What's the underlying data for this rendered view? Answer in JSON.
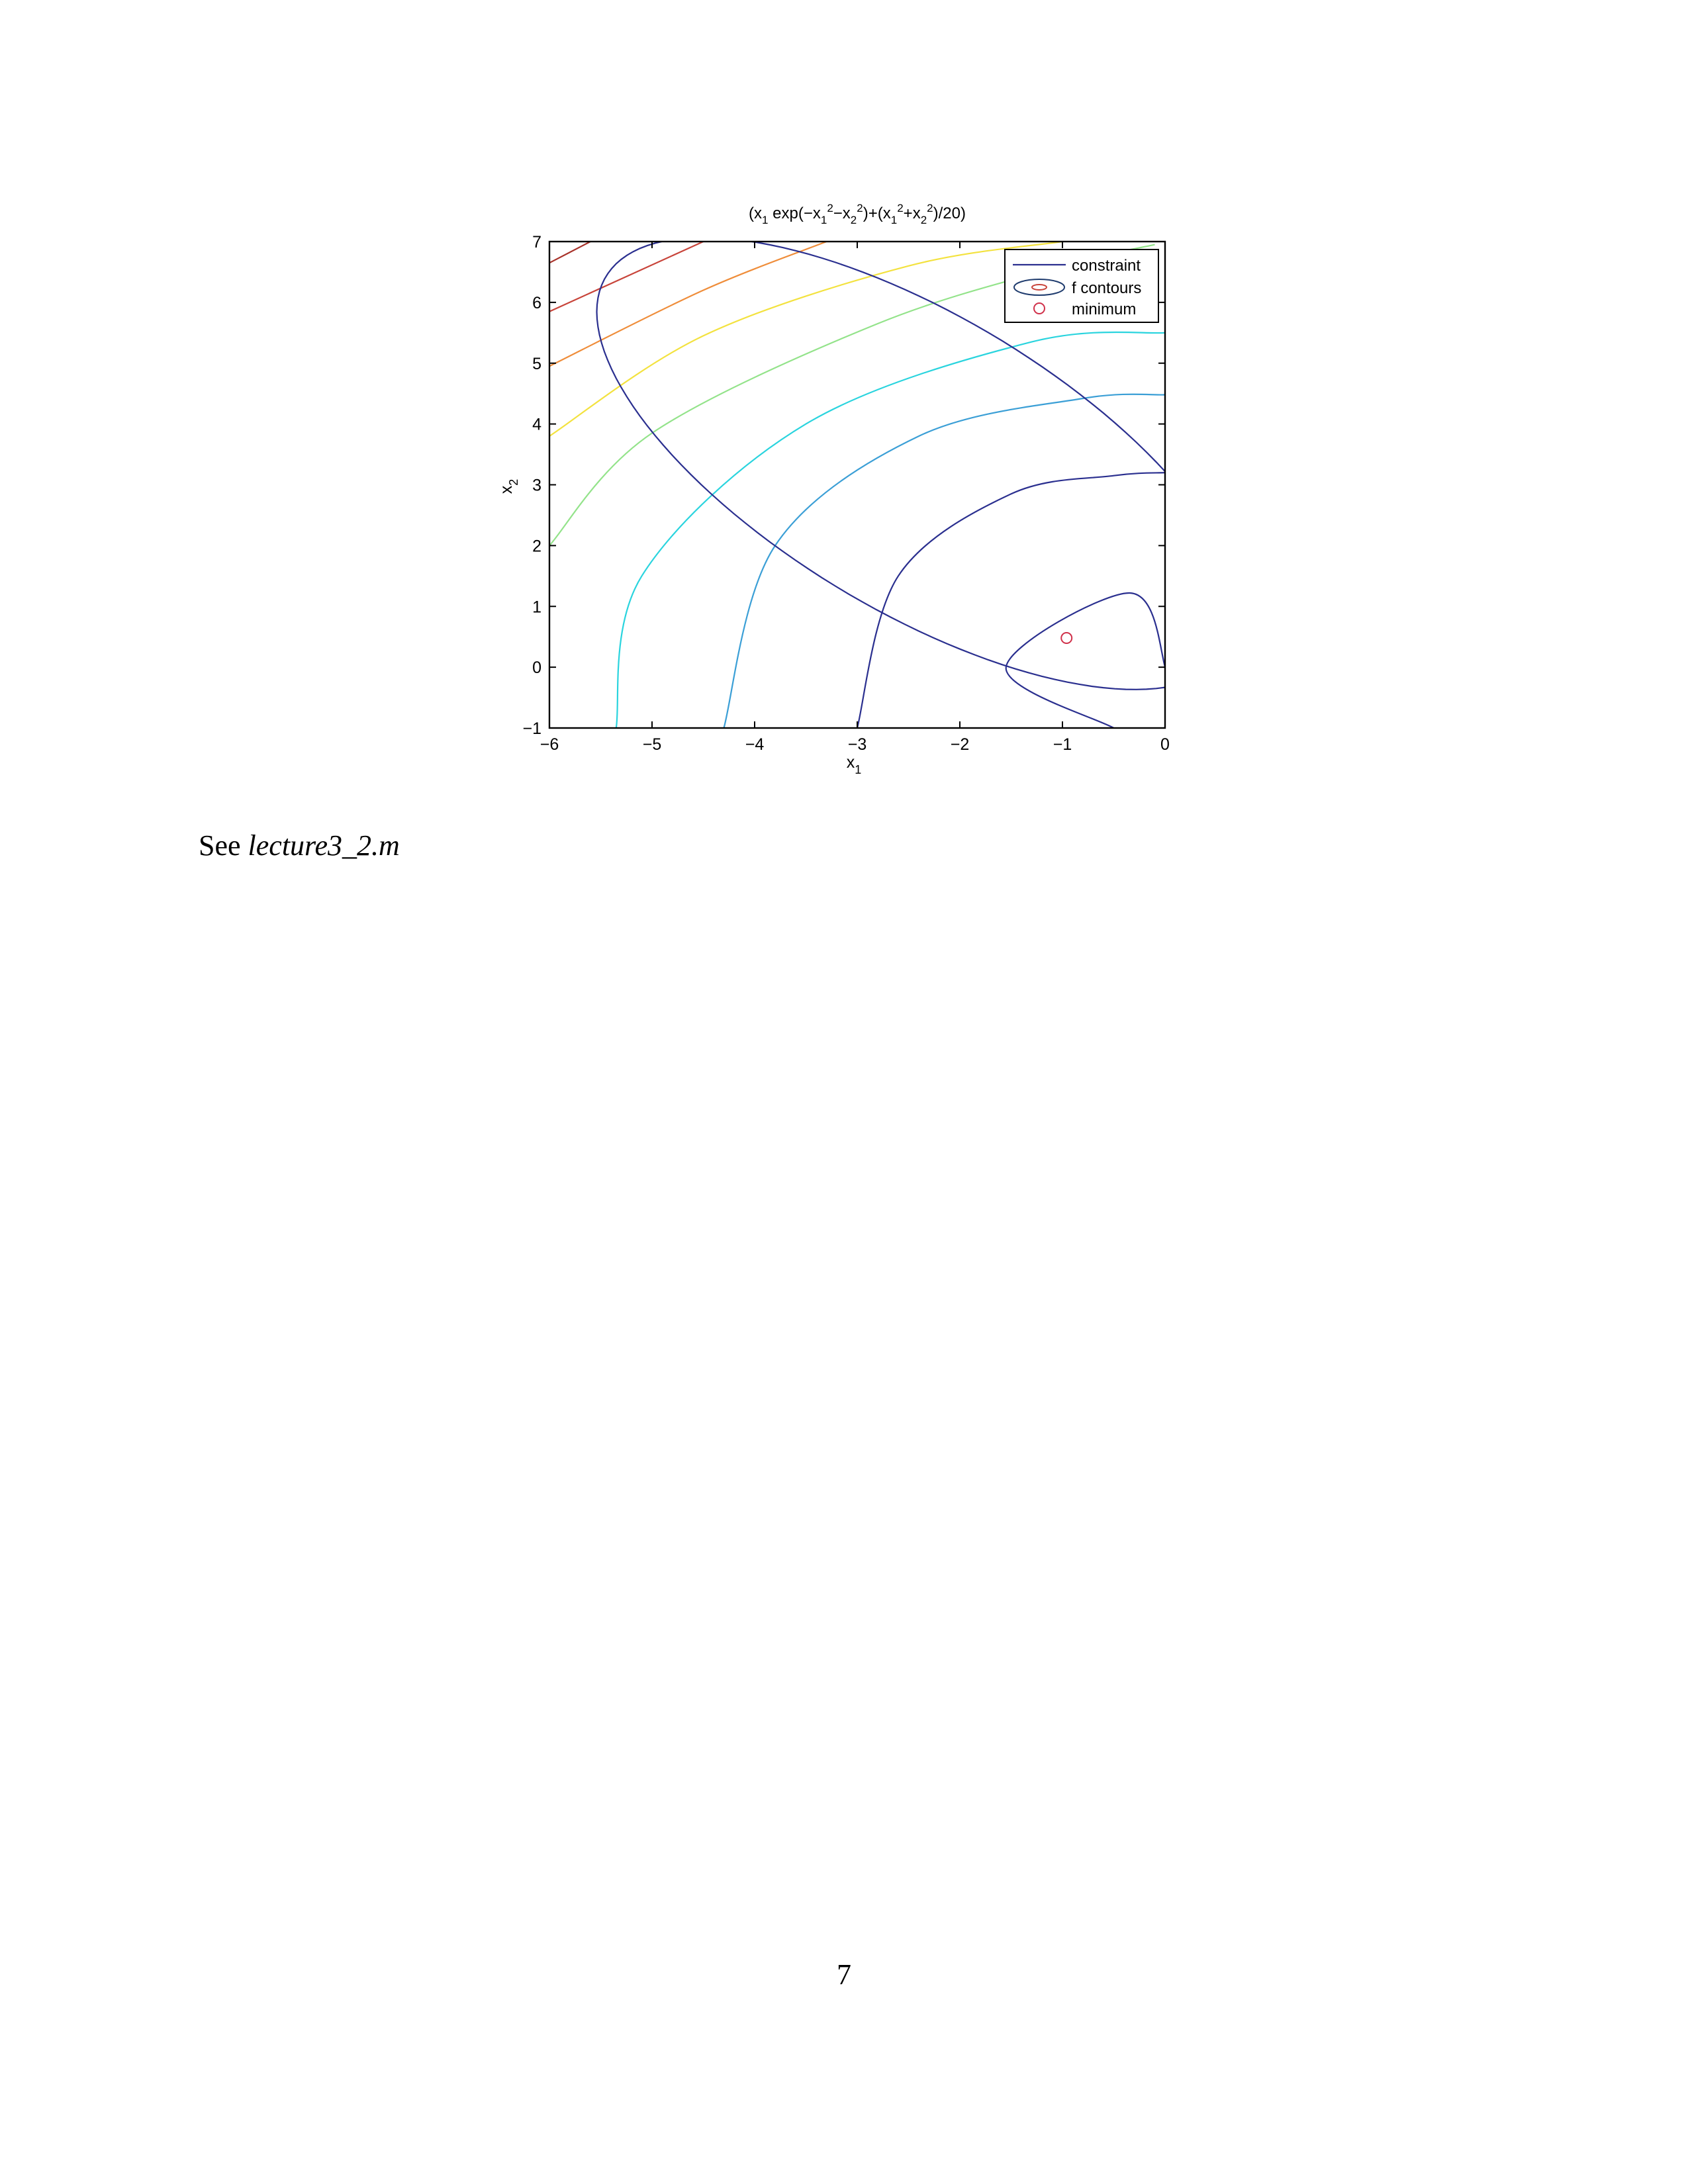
{
  "chart_data": {
    "type": "contour",
    "title_parts": {
      "a": "(x",
      "s1": "1",
      "b": " exp(−x",
      "s2": "1",
      "sup1": "2",
      "c": "−x",
      "s3": "2",
      "sup2": "2",
      "d": ")+(x",
      "s4": "1",
      "sup3": "2",
      "e": "+x",
      "s5": "2",
      "sup4": "2",
      "f": ")/20)"
    },
    "xlabel": {
      "base": "x",
      "sub": "1"
    },
    "ylabel": {
      "base": "x",
      "sub": "2"
    },
    "xlim": [
      -6,
      0
    ],
    "ylim": [
      -1,
      7
    ],
    "x_ticks": [
      -6,
      -5,
      -4,
      -3,
      -2,
      -1,
      0
    ],
    "x_tick_labels": [
      "−6",
      "−5",
      "−4",
      "−3",
      "−2",
      "−1",
      "0"
    ],
    "y_ticks": [
      -1,
      0,
      1,
      2,
      3,
      4,
      5,
      6,
      7
    ],
    "y_tick_labels": [
      "−1",
      "0",
      "1",
      "2",
      "3",
      "4",
      "5",
      "6",
      "7"
    ],
    "legend": {
      "position": "top-right",
      "entries": [
        {
          "label": "constraint",
          "kind": "line",
          "color": "#2a2f8f"
        },
        {
          "label": "f contours",
          "kind": "ellipse",
          "color": "#1f3c6e"
        },
        {
          "label": "minimum",
          "kind": "marker",
          "color": "#d0304a"
        }
      ]
    },
    "constraint": {
      "color": "#2a2f8f",
      "center": [
        -2.4,
        3.35
      ],
      "points": [
        [
          -3.6,
          6.85
        ],
        [
          -5.3,
          4.6
        ],
        [
          -2.0,
          0.0
        ],
        [
          -0.4,
          2.2
        ]
      ]
    },
    "contours": [
      {
        "level": "f1",
        "color": "#2a2f8f",
        "points": [
          [
            -0.5,
            -1.0
          ],
          [
            -1.55,
            0.0
          ],
          [
            -0.35,
            1.22
          ],
          [
            0.0,
            0.0
          ],
          [
            0.0,
            -1.0
          ]
        ]
      },
      {
        "level": "f2",
        "color": "#2a2f8f",
        "points": [
          [
            -3.0,
            -1.0
          ],
          [
            -2.6,
            1.5
          ],
          [
            -1.5,
            2.85
          ],
          [
            -0.5,
            3.15
          ],
          [
            0.0,
            3.2
          ]
        ]
      },
      {
        "level": "f3",
        "color": "#3b9fd6",
        "points": [
          [
            -4.3,
            -1.0
          ],
          [
            -3.8,
            2.0
          ],
          [
            -2.4,
            3.8
          ],
          [
            -0.8,
            4.42
          ],
          [
            0.0,
            4.48
          ]
        ]
      },
      {
        "level": "f4",
        "color": "#2ad4de",
        "points": [
          [
            -5.35,
            -1.0
          ],
          [
            -5.1,
            1.5
          ],
          [
            -3.5,
            4.0
          ],
          [
            -1.3,
            5.35
          ],
          [
            0.0,
            5.5
          ]
        ]
      },
      {
        "level": "f5",
        "color": "#93e38a",
        "points": [
          [
            -6.0,
            2.0
          ],
          [
            -5.0,
            3.85
          ],
          [
            -2.8,
            5.65
          ],
          [
            -1.0,
            6.6
          ],
          [
            -0.1,
            6.95
          ]
        ]
      },
      {
        "level": "f6",
        "color": "#f3e23f",
        "points": [
          [
            -6.0,
            3.8
          ],
          [
            -4.5,
            5.45
          ],
          [
            -2.5,
            6.6
          ],
          [
            -1.0,
            7.0
          ]
        ]
      },
      {
        "level": "f7",
        "color": "#ef8d3a",
        "points": [
          [
            -6.0,
            4.95
          ],
          [
            -4.5,
            6.2
          ],
          [
            -3.3,
            7.0
          ]
        ]
      },
      {
        "level": "f8",
        "color": "#c8443a",
        "points": [
          [
            -6.0,
            5.85
          ],
          [
            -4.5,
            7.0
          ]
        ]
      },
      {
        "level": "f9",
        "color": "#a8322a",
        "points": [
          [
            -6.0,
            6.65
          ],
          [
            -5.6,
            7.0
          ]
        ]
      }
    ],
    "minimum": {
      "x": -0.96,
      "y": 0.48,
      "color": "#d0304a"
    }
  },
  "text": {
    "see_prefix": "See ",
    "see_file": "lecture3_2.m"
  },
  "page_number": "7"
}
